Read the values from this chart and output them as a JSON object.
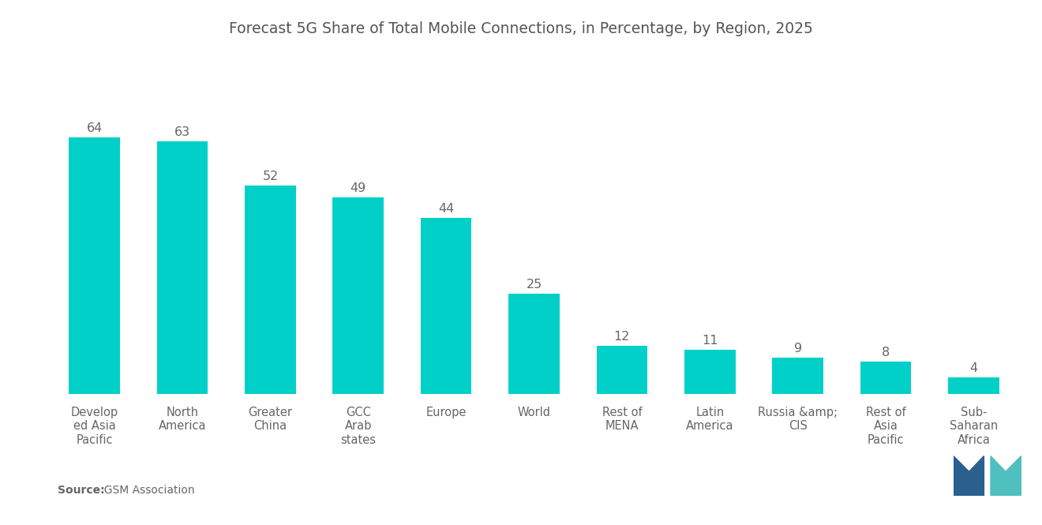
{
  "title": "Forecast 5G Share of Total Mobile Connections, in Percentage, by Region, 2025",
  "categories": [
    "Develop\ned Asia\nPacific",
    "North\nAmerica",
    "Greater\nChina",
    "GCC\nArab\nstates",
    "Europe",
    "World",
    "Rest of\nMENA",
    "Latin\nAmerica",
    "Russia &amp;\nCIS",
    "Rest of\nAsia\nPacific",
    "Sub-\nSaharan\nAfrica"
  ],
  "values": [
    64,
    63,
    52,
    49,
    44,
    25,
    12,
    11,
    9,
    8,
    4
  ],
  "bar_color": "#00D0C8",
  "background_color": "#ffffff",
  "title_fontsize": 13.5,
  "label_fontsize": 10.5,
  "value_fontsize": 11.5,
  "source_bold": "Source:",
  "source_normal": "  GSM Association",
  "source_fontsize": 10,
  "ylim": [
    0,
    80
  ]
}
